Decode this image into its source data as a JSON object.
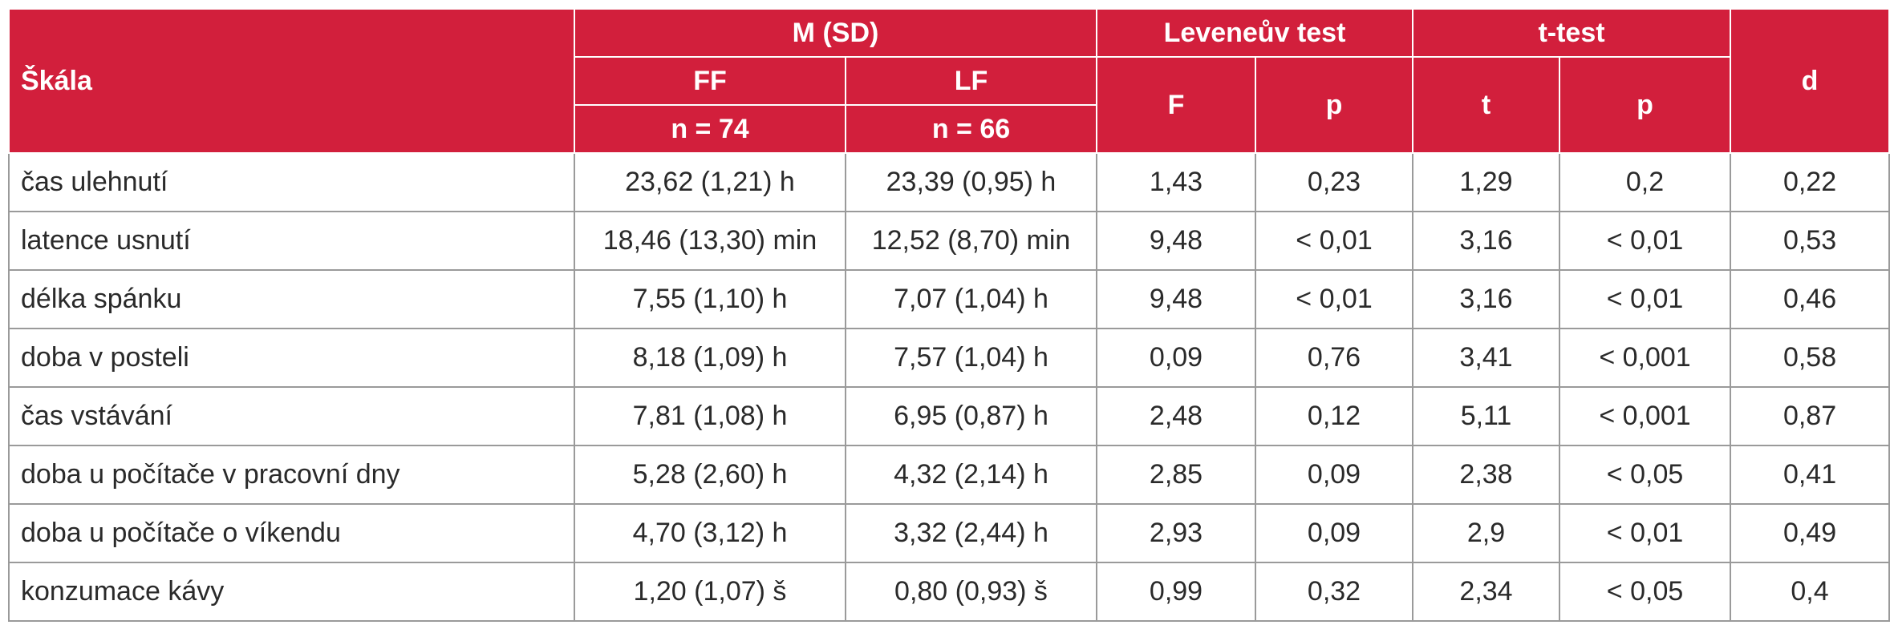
{
  "header": {
    "skala": "Škála",
    "msd": "M (SD)",
    "levene": "Leveneův test",
    "ttest": "t-test",
    "d": "d",
    "ff": "FF",
    "lf": "LF",
    "f": "F",
    "p1": "p",
    "t": "t",
    "p2": "p",
    "n_ff": "n = 74",
    "n_lf": "n = 66"
  },
  "rows": [
    {
      "skala": "čas ulehnutí",
      "ff": "23,62 (1,21) h",
      "lf": "23,39 (0,95) h",
      "F": "1,43",
      "p_lev": "0,23",
      "t": "1,29",
      "p_t": "0,2",
      "d": "0,22"
    },
    {
      "skala": "latence usnutí",
      "ff": "18,46 (13,30) min",
      "lf": "12,52 (8,70) min",
      "F": "9,48",
      "p_lev": "< 0,01",
      "t": "3,16",
      "p_t": "< 0,01",
      "d": "0,53"
    },
    {
      "skala": "délka spánku",
      "ff": "7,55 (1,10) h",
      "lf": "7,07 (1,04) h",
      "F": "9,48",
      "p_lev": "< 0,01",
      "t": "3,16",
      "p_t": "< 0,01",
      "d": "0,46"
    },
    {
      "skala": "doba v posteli",
      "ff": "8,18 (1,09) h",
      "lf": "7,57 (1,04) h",
      "F": "0,09",
      "p_lev": "0,76",
      "t": "3,41",
      "p_t": "< 0,001",
      "d": "0,58"
    },
    {
      "skala": "čas vstávání",
      "ff": "7,81 (1,08) h",
      "lf": "6,95 (0,87) h",
      "F": "2,48",
      "p_lev": "0,12",
      "t": "5,11",
      "p_t": "< 0,001",
      "d": "0,87"
    },
    {
      "skala": "doba u počítače v pracovní dny",
      "ff": "5,28 (2,60) h",
      "lf": "4,32 (2,14) h",
      "F": "2,85",
      "p_lev": "0,09",
      "t": "2,38",
      "p_t": "< 0,05",
      "d": "0,41"
    },
    {
      "skala": "doba u počítače o víkendu",
      "ff": "4,70 (3,12) h",
      "lf": "3,32 (2,44) h",
      "F": "2,93",
      "p_lev": "0,09",
      "t": "2,9",
      "p_t": "< 0,01",
      "d": "0,49"
    },
    {
      "skala": "konzumace kávy",
      "ff": "1,20 (1,07) š",
      "lf": "0,80 (0,93) š",
      "F": "0,99",
      "p_lev": "0,32",
      "t": "2,34",
      "p_t": "< 0,05",
      "d": "0,4"
    }
  ],
  "colors": {
    "header_bg": "#d21f3c",
    "header_text": "#ffffff",
    "border": "#9a9a9a"
  }
}
